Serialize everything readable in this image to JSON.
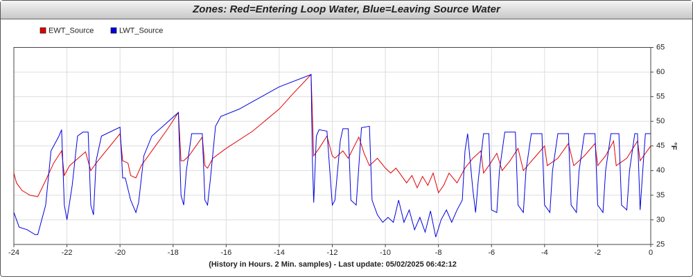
{
  "chart_data": {
    "type": "line",
    "title": "Zones: Red=Entering Loop Water, Blue=Leaving Source Water",
    "xlabel": "(History in Hours. 2 Min. samples) - Last update: 05/02/2025 06:42:12",
    "ylabel": "°F",
    "xlim": [
      -24,
      0
    ],
    "xticks": [
      -24,
      -22,
      -20,
      -18,
      -16,
      -14,
      -12,
      -10,
      -8,
      -6,
      -4,
      -2,
      0
    ],
    "ylim": [
      25,
      65
    ],
    "yticks": [
      25,
      30,
      35,
      40,
      45,
      50,
      55,
      60,
      65
    ],
    "grid": true,
    "legend": "top-left",
    "y_axis_side": "right",
    "series": [
      {
        "name": "EWT_Source",
        "color": "#e00000",
        "x": [
          -24,
          -23.9,
          -23.7,
          -23.4,
          -23.1,
          -22.8,
          -22.5,
          -22.2,
          -22.1,
          -21.9,
          -21.3,
          -21.1,
          -20.9,
          -20.0,
          -19.9,
          -19.7,
          -19.6,
          -19.4,
          -19.2,
          -18.8,
          -18.2,
          -17.8,
          -17.7,
          -17.6,
          -17.4,
          -16.9,
          -16.8,
          -16.7,
          -16.5,
          -16.0,
          -15,
          -14,
          -13.5,
          -12.8,
          -12.7,
          -12.5,
          -12.2,
          -12.0,
          -11.9,
          -11.6,
          -11.4,
          -11.0,
          -10.8,
          -10.6,
          -10.3,
          -10.0,
          -9.8,
          -9.6,
          -9.4,
          -9.2,
          -9.0,
          -8.8,
          -8.6,
          -8.4,
          -8.2,
          -8.0,
          -7.8,
          -7.6,
          -7.3,
          -7.0,
          -6.7,
          -6.4,
          -6.3,
          -6.1,
          -5.8,
          -5.6,
          -5.3,
          -5.0,
          -4.8,
          -4.4,
          -4.0,
          -3.9,
          -3.5,
          -3.1,
          -2.9,
          -2.5,
          -2.1,
          -2.0,
          -1.7,
          -1.4,
          -1.3,
          -0.9,
          -0.5,
          -0.4,
          0
        ],
        "values": [
          39.5,
          37.5,
          36,
          35,
          34.7,
          38,
          41.5,
          44,
          39,
          41,
          43.8,
          40,
          41.5,
          47.5,
          42,
          41.5,
          39,
          38.5,
          41,
          44,
          48.5,
          51.8,
          42,
          42,
          43,
          46.8,
          41,
          40.5,
          42.5,
          44.5,
          48,
          52.5,
          55.5,
          59.5,
          43,
          44.5,
          47,
          43,
          42.5,
          44,
          42.5,
          46.8,
          43.5,
          41,
          42.5,
          40.5,
          39.5,
          40.5,
          39,
          37.5,
          39,
          36.5,
          38.8,
          37,
          39.5,
          35.5,
          37,
          39.5,
          37.5,
          40.5,
          42.5,
          44,
          39.5,
          41,
          43.5,
          40,
          42,
          44.5,
          40,
          42.5,
          45,
          41,
          42.5,
          45.5,
          41,
          43,
          45.5,
          41,
          43,
          46,
          41,
          42.5,
          46,
          42,
          45
        ]
      },
      {
        "name": "LWT_Source",
        "color": "#0000e0",
        "x": [
          -24,
          -23.8,
          -23.5,
          -23.2,
          -23.1,
          -22.8,
          -22.6,
          -22.3,
          -22.2,
          -22.1,
          -22.0,
          -21.8,
          -21.6,
          -21.4,
          -21.2,
          -21.1,
          -21.0,
          -20.9,
          -20.7,
          -20.0,
          -19.9,
          -19.8,
          -19.6,
          -19.4,
          -19.3,
          -19.1,
          -18.8,
          -17.8,
          -17.7,
          -17.6,
          -17.5,
          -17.3,
          -16.9,
          -16.8,
          -16.7,
          -16.6,
          -16.4,
          -16.2,
          -15.5,
          -15,
          -14,
          -12.8,
          -12.75,
          -12.7,
          -12.6,
          -12.5,
          -12.2,
          -12.0,
          -11.9,
          -11.7,
          -11.6,
          -11.4,
          -11.3,
          -11.1,
          -10.9,
          -10.6,
          -10.5,
          -10.3,
          -10.1,
          -9.9,
          -9.7,
          -9.5,
          -9.3,
          -9.1,
          -8.9,
          -8.7,
          -8.5,
          -8.3,
          -8.1,
          -7.9,
          -7.7,
          -7.5,
          -7.3,
          -7.1,
          -7.0,
          -6.9,
          -6.7,
          -6.6,
          -6.5,
          -6.3,
          -6.1,
          -6.0,
          -5.8,
          -5.7,
          -5.5,
          -5.1,
          -5.0,
          -4.8,
          -4.7,
          -4.5,
          -4.1,
          -4.0,
          -3.8,
          -3.7,
          -3.5,
          -3.1,
          -3.0,
          -2.8,
          -2.7,
          -2.5,
          -2.1,
          -2.0,
          -1.8,
          -1.7,
          -1.5,
          -1.2,
          -1.1,
          -0.9,
          -0.8,
          -0.6,
          -0.5,
          -0.4,
          -0.3,
          -0.2,
          0
        ],
        "values": [
          31.5,
          28.5,
          28,
          27,
          27,
          33,
          44,
          47,
          48.3,
          33,
          30,
          37,
          47,
          47.8,
          47.8,
          33,
          31,
          42,
          47,
          48.8,
          38.5,
          38.5,
          34,
          31.5,
          33.5,
          43,
          47,
          51.8,
          35,
          33,
          40,
          47.5,
          47.5,
          34,
          33,
          38,
          49,
          51,
          52.5,
          54,
          57,
          59.5,
          42,
          33.5,
          47,
          48.3,
          48,
          33,
          34,
          46,
          48.5,
          48.5,
          34,
          33,
          48.7,
          49,
          34,
          31,
          29.5,
          30.5,
          29.5,
          34,
          29.5,
          32,
          28,
          30.5,
          27.5,
          31.8,
          26.5,
          30,
          32,
          29.5,
          32,
          34,
          44,
          47.5,
          36,
          31.5,
          38,
          47.5,
          47.5,
          32,
          31.5,
          40,
          47.8,
          47.8,
          33,
          31.5,
          40,
          47.5,
          47.5,
          33,
          31.5,
          40,
          47.5,
          47.5,
          33,
          31.5,
          40,
          47.5,
          47.5,
          33,
          31.5,
          40,
          47.5,
          47.5,
          33,
          32,
          40,
          47.5,
          47.5,
          32,
          40,
          47.5,
          47.5
        ]
      }
    ]
  }
}
